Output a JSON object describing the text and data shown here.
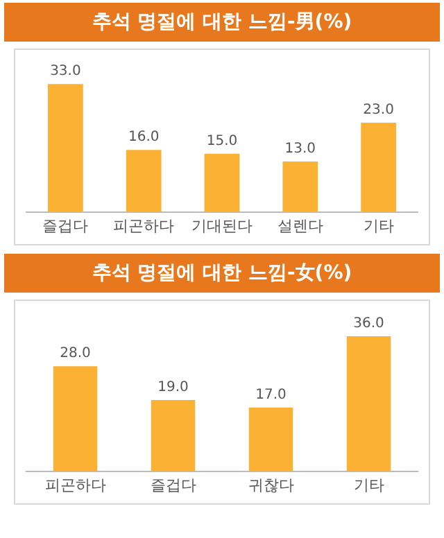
{
  "chart_data": [
    {
      "type": "bar",
      "title": "추석 명절에 대한 느낌-男(%)",
      "categories": [
        "즐겁다",
        "피곤하다",
        "기대된다",
        "설렌다",
        "기타"
      ],
      "values": [
        33.0,
        16.0,
        15.0,
        13.0,
        23.0
      ],
      "color": "#fbb234",
      "data_labels": true,
      "value_labels": [
        "33.0",
        "16.0",
        "15.0",
        "13.0",
        "23.0"
      ],
      "grid": false,
      "legend": false
    },
    {
      "type": "bar",
      "title": "추석 명절에 대한 느낌-女(%)",
      "categories": [
        "피곤하다",
        "즐겁다",
        "귀찮다",
        "기타"
      ],
      "values": [
        28.0,
        19.0,
        17.0,
        36.0
      ],
      "color": "#fbb234",
      "data_labels": true,
      "value_labels": [
        "28.0",
        "19.0",
        "17.0",
        "36.0"
      ],
      "grid": false,
      "legend": false
    }
  ]
}
